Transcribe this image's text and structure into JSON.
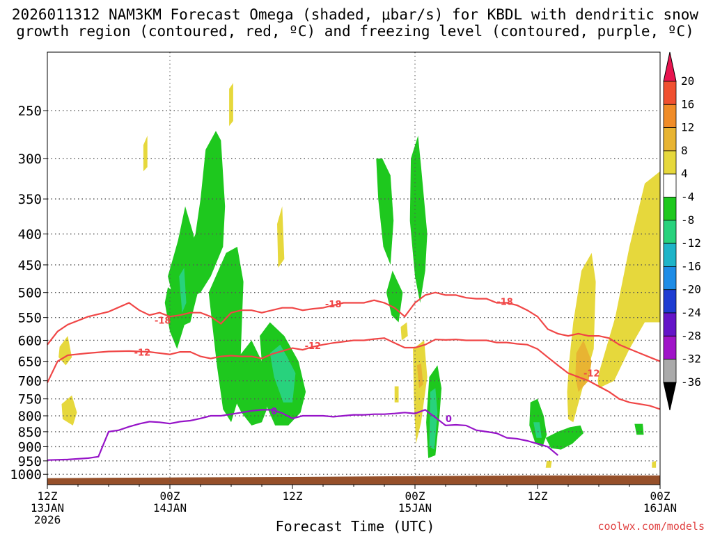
{
  "chart_data": {
    "type": "heatmap",
    "title_line1": "2026011312 NAM3KM Forecast Omega (shaded, μbar/s) for KBDL with dendritic snow",
    "title_line2": "growth region (contoured, red, ºC) and freezing level (contoured, purple, ºC)",
    "xlabel": "Forecast Time (UTC)",
    "credit": "coolwx.com/models",
    "x_range_hours": [
      0,
      60
    ],
    "x_ticks": [
      {
        "hour": 0,
        "lines": [
          "12Z",
          "13JAN",
          "2026"
        ]
      },
      {
        "hour": 12,
        "lines": [
          "00Z",
          "14JAN"
        ]
      },
      {
        "hour": 24,
        "lines": [
          "12Z"
        ]
      },
      {
        "hour": 36,
        "lines": [
          "00Z",
          "15JAN"
        ]
      },
      {
        "hour": 48,
        "lines": [
          "12Z"
        ]
      },
      {
        "hour": 60,
        "lines": [
          "00Z",
          "16JAN"
        ]
      }
    ],
    "y_ticks_hpa": [
      250,
      300,
      350,
      400,
      450,
      500,
      550,
      600,
      650,
      700,
      750,
      800,
      850,
      900,
      950,
      1000
    ],
    "y_range_hpa": [
      200,
      1040
    ],
    "colorbar": {
      "labels": [
        "20",
        "16",
        "12",
        "8",
        "4",
        "-4",
        "-8",
        "-12",
        "-16",
        "-20",
        "-24",
        "-28",
        "-32",
        "-36"
      ],
      "colors": [
        "#e8144f",
        "#f05030",
        "#f08c28",
        "#e8b432",
        "#e6d83c",
        "#ffffff",
        "#1ec81e",
        "#28d27d",
        "#1eb4c8",
        "#1e8ce6",
        "#1e3cd2",
        "#6414c8",
        "#a014c8",
        "#aaaaaa",
        "#000000"
      ]
    },
    "contour_labels": {
      "dgz_top": "-18",
      "dgz_bottom": "-12",
      "freezing": "0"
    },
    "colors": {
      "dgz": "#f04646",
      "freezing": "#9614c8",
      "terrain": "#96502a",
      "green": "#1ec81e",
      "teal": "#28d27d",
      "cyan": "#1eb4c8",
      "yellow": "#e6d83c",
      "orange": "#e8b432"
    },
    "series": [
      {
        "name": "-18C isotherm (top of DGZ)",
        "x": [
          0,
          1,
          2,
          4,
          6,
          8,
          9,
          10,
          11,
          12,
          13,
          14,
          15,
          16,
          17,
          18,
          19,
          20,
          21,
          22,
          23,
          24,
          25,
          26,
          27,
          28,
          29,
          30,
          31,
          32,
          33,
          34,
          35,
          36,
          37,
          38,
          39,
          40,
          41,
          42,
          43,
          44,
          45,
          46,
          47,
          48,
          49,
          50,
          51,
          52,
          53,
          54,
          55,
          56,
          57,
          58,
          59,
          60
        ],
        "y": [
          610,
          580,
          565,
          548,
          538,
          520,
          535,
          545,
          540,
          548,
          545,
          540,
          540,
          548,
          563,
          540,
          535,
          535,
          540,
          535,
          530,
          530,
          535,
          532,
          530,
          525,
          520,
          520,
          520,
          515,
          520,
          530,
          548,
          520,
          505,
          500,
          505,
          505,
          510,
          512,
          512,
          520,
          520,
          525,
          535,
          548,
          575,
          585,
          590,
          585,
          590,
          590,
          595,
          610,
          620,
          630,
          640,
          650
        ]
      },
      {
        "name": "-12C isotherm (bottom of DGZ)",
        "x": [
          0,
          1,
          2,
          4,
          6,
          8,
          10,
          12,
          13,
          14,
          15,
          16,
          17,
          18,
          19,
          20,
          21,
          22,
          23,
          24,
          25,
          26,
          27,
          28,
          29,
          30,
          31,
          32,
          33,
          34,
          35,
          36,
          37,
          38,
          39,
          40,
          41,
          42,
          43,
          44,
          45,
          46,
          47,
          48,
          49,
          50,
          51,
          52,
          53,
          54,
          55,
          56,
          57,
          58,
          59,
          60
        ],
        "y": [
          705,
          650,
          635,
          630,
          626,
          625,
          627,
          633,
          627,
          627,
          638,
          643,
          638,
          636,
          638,
          638,
          643,
          632,
          625,
          618,
          622,
          615,
          610,
          606,
          603,
          600,
          600,
          597,
          595,
          606,
          617,
          617,
          610,
          598,
          599,
          598,
          600,
          600,
          600,
          605,
          605,
          608,
          610,
          620,
          640,
          660,
          680,
          690,
          700,
          715,
          730,
          750,
          760,
          765,
          770,
          780
        ]
      },
      {
        "name": "0C freezing level",
        "x": [
          0,
          2,
          4,
          5,
          6,
          7,
          8,
          9,
          10,
          11,
          12,
          13,
          14,
          15,
          16,
          17,
          18,
          19,
          20,
          21,
          22,
          23,
          24,
          25,
          26,
          27,
          28,
          29,
          30,
          31,
          32,
          33,
          34,
          35,
          36,
          37,
          38,
          39,
          40,
          41,
          42,
          43,
          44,
          45,
          46,
          47,
          48,
          49,
          50
        ],
        "y": [
          947,
          945,
          940,
          935,
          850,
          845,
          834,
          825,
          818,
          820,
          824,
          818,
          815,
          808,
          800,
          800,
          795,
          790,
          785,
          782,
          782,
          792,
          808,
          800,
          800,
          800,
          803,
          800,
          797,
          797,
          795,
          795,
          793,
          790,
          793,
          782,
          805,
          830,
          828,
          830,
          845,
          850,
          855,
          870,
          873,
          880,
          890,
          900,
          930
        ]
      }
    ],
    "omega_regions": [
      {
        "band": "-8",
        "t": [
          12.5,
          13.5,
          14.5,
          15,
          15.5,
          16.5,
          17.0,
          17.4,
          17.2,
          16.0,
          15.0,
          14.0,
          13.5,
          12.7,
          12.0,
          11.5,
          11.8
        ],
        "p": [
          500,
          440,
          400,
          350,
          290,
          270,
          280,
          360,
          420,
          470,
          500,
          510,
          560,
          620,
          580,
          520,
          490
        ]
      },
      {
        "band": "-8",
        "t": [
          11.8,
          12.8,
          13.5,
          14.3,
          15.0,
          14.0,
          13.0,
          12.4
        ],
        "p": [
          470,
          410,
          360,
          400,
          480,
          560,
          570,
          520
        ]
      },
      {
        "band": "-8",
        "t": [
          15.8,
          17.5,
          18.6,
          19.2,
          19.0,
          18.8,
          18.0,
          17.2,
          16.6
        ],
        "p": [
          500,
          430,
          420,
          480,
          590,
          740,
          820,
          780,
          660
        ]
      },
      {
        "band": "-8",
        "t": [
          17.6,
          18.7,
          20.0,
          21.2,
          21.5,
          21.0,
          20.0,
          19.0,
          18.5
        ],
        "p": [
          700,
          640,
          600,
          660,
          780,
          820,
          830,
          790,
          760
        ]
      },
      {
        "band": "-8",
        "t": [
          20.8,
          21.8,
          23.2,
          24.6,
          25.3,
          24.8,
          23.6,
          22.3,
          21.3
        ],
        "p": [
          590,
          560,
          590,
          650,
          730,
          790,
          830,
          830,
          760
        ]
      },
      {
        "band": "-8",
        "t": [
          32.2,
          32.8,
          33.6,
          33.9,
          33.6,
          32.9,
          32.4
        ],
        "p": [
          300,
          300,
          320,
          380,
          450,
          420,
          350
        ]
      },
      {
        "band": "-8",
        "t": [
          35.6,
          36.3,
          36.6,
          37.2,
          37.0,
          36.5,
          36.0,
          35.5
        ],
        "p": [
          300,
          275,
          310,
          400,
          460,
          520,
          470,
          380
        ]
      },
      {
        "band": "-8",
        "t": [
          33.2,
          33.8,
          34.8,
          34.4,
          33.7
        ],
        "p": [
          500,
          460,
          500,
          560,
          545
        ]
      },
      {
        "band": "-8",
        "t": [
          37.4,
          38.2,
          38.6,
          38.4,
          38.0,
          37.3,
          37.1
        ],
        "p": [
          690,
          660,
          720,
          800,
          930,
          940,
          820
        ]
      },
      {
        "band": "-8",
        "t": [
          47.3,
          48.0,
          48.6,
          48.9,
          48.5,
          47.8,
          47.2
        ],
        "p": [
          760,
          750,
          800,
          860,
          900,
          890,
          830
        ]
      },
      {
        "band": "-8",
        "t": [
          48.8,
          50.0,
          51.2,
          52.2,
          52.5,
          51.4,
          50.3,
          49.3
        ],
        "p": [
          870,
          850,
          835,
          830,
          855,
          890,
          910,
          905
        ]
      },
      {
        "band": "-8",
        "t": [
          57.5,
          58.3,
          58.4,
          57.7
        ],
        "p": [
          825,
          825,
          860,
          860
        ]
      },
      {
        "band": "-12",
        "t": [
          12.9,
          13.4,
          13.6,
          13.2
        ],
        "p": [
          470,
          455,
          520,
          540
        ]
      },
      {
        "band": "-12",
        "t": [
          21.8,
          22.8,
          23.5,
          24.3,
          24.0,
          23.1,
          22.2
        ],
        "p": [
          630,
          610,
          640,
          680,
          760,
          760,
          690
        ]
      },
      {
        "band": "-12",
        "t": [
          37.5,
          38.0,
          38.2,
          37.9,
          37.4
        ],
        "p": [
          730,
          720,
          790,
          910,
          900
        ]
      },
      {
        "band": "-12",
        "t": [
          47.6,
          48.2,
          48.4,
          47.9
        ],
        "p": [
          820,
          820,
          870,
          870
        ]
      },
      {
        "band": "4",
        "t": [
          1.2,
          2.0,
          2.4,
          1.8,
          1.1
        ],
        "p": [
          615,
          590,
          640,
          660,
          640
        ]
      },
      {
        "band": "4",
        "t": [
          1.4,
          2.4,
          2.9,
          2.5,
          1.5
        ],
        "p": [
          765,
          740,
          790,
          830,
          810
        ]
      },
      {
        "band": "4",
        "t": [
          9.4,
          9.8,
          9.8,
          9.4
        ],
        "p": [
          285,
          275,
          310,
          315
        ]
      },
      {
        "band": "4",
        "t": [
          17.8,
          18.2,
          18.2,
          17.8
        ],
        "p": [
          230,
          225,
          260,
          265
        ]
      },
      {
        "band": "4",
        "t": [
          22.5,
          23.0,
          23.2,
          22.6
        ],
        "p": [
          385,
          360,
          440,
          455
        ]
      },
      {
        "band": "4",
        "t": [
          34.6,
          35.2,
          35.3,
          34.7
        ],
        "p": [
          570,
          560,
          590,
          600
        ]
      },
      {
        "band": "4",
        "t": [
          34.0,
          34.4,
          34.4,
          34.0
        ],
        "p": [
          715,
          715,
          760,
          760
        ]
      },
      {
        "band": "4",
        "t": [
          35.8,
          36.9,
          37.2,
          36.6,
          36.1,
          35.9
        ],
        "p": [
          620,
          600,
          690,
          820,
          890,
          760
        ]
      },
      {
        "band": "4",
        "t": [
          48.9,
          49.4,
          49.3,
          48.8
        ],
        "p": [
          950,
          950,
          975,
          975
        ]
      },
      {
        "band": "4",
        "t": [
          51.5,
          52.3,
          53.3,
          53.7,
          53.5,
          52.6,
          51.5,
          51.0,
          50.9,
          51.1
        ],
        "p": [
          560,
          460,
          430,
          480,
          620,
          700,
          820,
          810,
          730,
          650
        ]
      },
      {
        "band": "4",
        "t": [
          54.0,
          55.6,
          57.0,
          58.5,
          60.0,
          60.0,
          58.5,
          57.0,
          55.5,
          54.0,
          53.9
        ],
        "p": [
          680,
          550,
          420,
          330,
          315,
          560,
          560,
          620,
          700,
          720,
          700
        ]
      },
      {
        "band": "4",
        "t": [
          59.2,
          59.6,
          59.6,
          59.2
        ],
        "p": [
          955,
          950,
          975,
          975
        ]
      },
      {
        "band": "8",
        "t": [
          51.8,
          52.5,
          53.3,
          53.0,
          52.0,
          51.7
        ],
        "p": [
          630,
          600,
          650,
          700,
          730,
          690
        ]
      },
      {
        "band": "8",
        "t": [
          36.2,
          36.6,
          36.8,
          36.4
        ],
        "p": [
          660,
          655,
          710,
          720
        ]
      },
      {
        "band": "4",
        "t": [
          56.5,
          57.2,
          57.5,
          56.6
        ],
        "p": [
          490,
          480,
          540,
          560
        ]
      }
    ]
  }
}
